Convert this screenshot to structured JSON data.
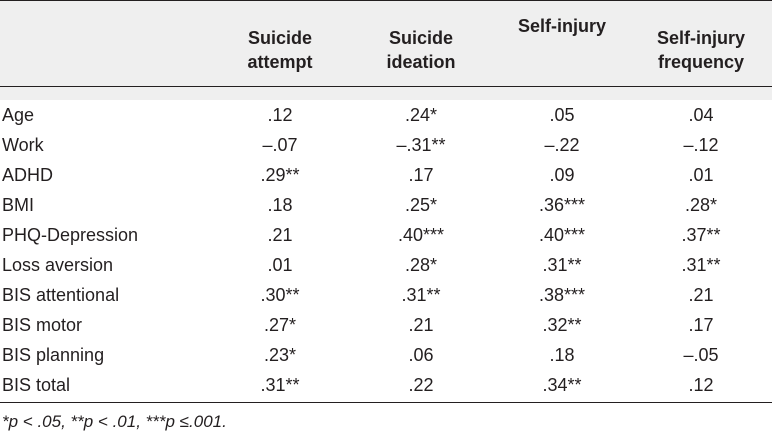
{
  "columns": [
    {
      "line1": "Suicide",
      "line2": "attempt"
    },
    {
      "line1": "Suicide",
      "line2": "ideation"
    },
    {
      "line1": "Self-injury",
      "line2": ""
    },
    {
      "line1": "Self-injury",
      "line2": "frequency"
    }
  ],
  "rows": [
    {
      "label": "Age",
      "values": [
        ".12",
        ".24*",
        ".05",
        ".04"
      ]
    },
    {
      "label": "Work",
      "values": [
        "–.07",
        "–.31**",
        "–.22",
        "–.12"
      ]
    },
    {
      "label": "ADHD",
      "values": [
        ".29**",
        ".17",
        ".09",
        ".01"
      ]
    },
    {
      "label": "BMI",
      "values": [
        ".18",
        ".25*",
        ".36***",
        ".28*"
      ]
    },
    {
      "label": "PHQ-Depression",
      "values": [
        ".21",
        ".40***",
        ".40***",
        ".37**"
      ]
    },
    {
      "label": "Loss aversion",
      "values": [
        ".01",
        ".28*",
        ".31**",
        ".31**"
      ]
    },
    {
      "label": "BIS attentional",
      "values": [
        ".30**",
        ".31**",
        ".38***",
        ".21"
      ]
    },
    {
      "label": "BIS motor",
      "values": [
        ".27*",
        ".21",
        ".32**",
        ".17"
      ]
    },
    {
      "label": "BIS planning",
      "values": [
        ".23*",
        ".06",
        ".18",
        "–.05"
      ]
    },
    {
      "label": "BIS total",
      "values": [
        ".31**",
        ".22",
        ".34**",
        ".12"
      ]
    }
  ],
  "footnote": "*p < .05, **p < .01, ***p ≤.001."
}
